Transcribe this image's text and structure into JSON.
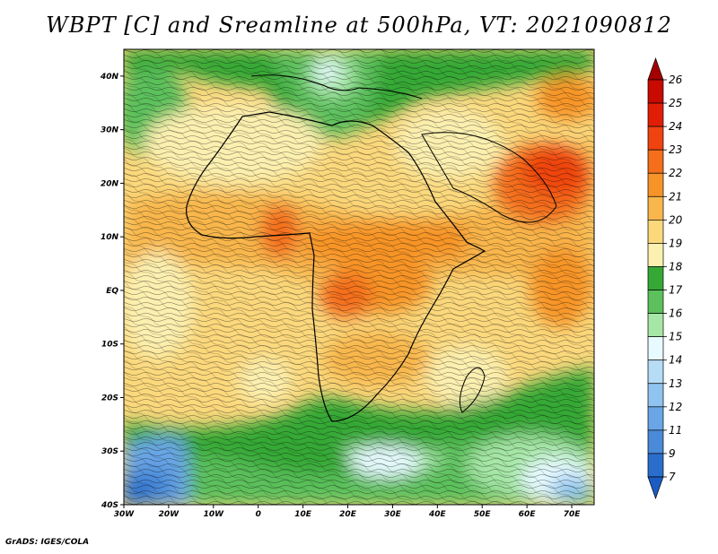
{
  "title": "WBPT [C] and Sreamline at 500hPa, VT: 2021090812",
  "footer": "GrADS: IGES/COLA",
  "chart_data": {
    "type": "heatmap",
    "variable": "Wet bulb potential temperature with streamlines",
    "level": "500hPa",
    "valid_time": "2021090812",
    "x_ticks": [
      "30W",
      "20W",
      "10W",
      "0",
      "10E",
      "20E",
      "30E",
      "40E",
      "50E",
      "60E",
      "70E"
    ],
    "y_ticks": [
      "40N",
      "30N",
      "20N",
      "10N",
      "EQ",
      "10S",
      "20S",
      "30S",
      "40S"
    ],
    "lon_range": [
      -30,
      75
    ],
    "lat_range": [
      -40,
      45
    ],
    "colorbar": {
      "levels": [
        "26",
        "25",
        "24",
        "23",
        "22",
        "21",
        "20",
        "19",
        "18",
        "17",
        "16",
        "15",
        "14",
        "13",
        "12",
        "11",
        "9",
        "7"
      ],
      "colors": [
        "#a50000",
        "#c80a00",
        "#e11e05",
        "#ef4410",
        "#f46e1c",
        "#f79428",
        "#f8b64c",
        "#fbd87c",
        "#fcf0b0",
        "#36a836",
        "#5cc05c",
        "#a6e6a6",
        "#e6faff",
        "#b6dcf6",
        "#90c4f0",
        "#6aa6e6",
        "#4a8ad8",
        "#2a6ecc",
        "#1b5bc4"
      ]
    }
  }
}
